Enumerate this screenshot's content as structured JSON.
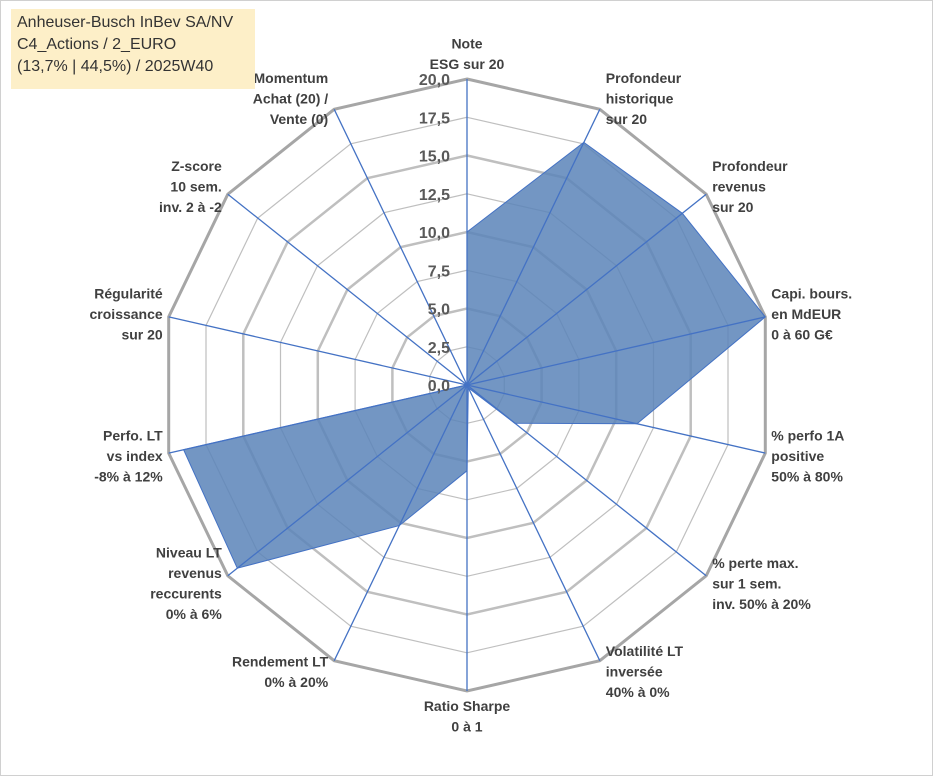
{
  "title": {
    "line1": "Anheuser-Busch InBev SA/NV",
    "line2": "C4_Actions / 2_EURO",
    "line3": "(13,7% | 44,5%) / 2025W40"
  },
  "colors": {
    "fill": "#5b84b8",
    "spoke": "#4472c4",
    "grid": "#bfbfbf",
    "gridOuter": "#a6a6a6",
    "label": "#404040"
  },
  "chart_data": {
    "type": "radar",
    "rmin": 0,
    "rmax": 20,
    "ticks": [
      "0,0",
      "2,5",
      "5,0",
      "7,5",
      "10,0",
      "12,5",
      "15,0",
      "17,5",
      "20,0"
    ],
    "axes": [
      {
        "label": [
          "Note",
          "ESG sur 20"
        ],
        "value": 10.0
      },
      {
        "label": [
          "Profondeur",
          "historique",
          "sur 20"
        ],
        "value": 17.6
      },
      {
        "label": [
          "Profondeur",
          "revenus",
          "sur 20"
        ],
        "value": 18.0
      },
      {
        "label": [
          "Capi. bours.",
          "en MdEUR",
          "0 à 60 G€"
        ],
        "value": 20.0
      },
      {
        "label": [
          "% perfo 1A",
          "positive",
          "50% à 80%"
        ],
        "value": 11.4
      },
      {
        "label": [
          "% perte max.",
          "sur 1 sem.",
          "inv. 50% à 20%"
        ],
        "value": 4.0
      },
      {
        "label": [
          "Volatilité LT",
          "inversée",
          "40% à 0%"
        ],
        "value": 0.2
      },
      {
        "label": [
          "Ratio Sharpe",
          "0 à 1"
        ],
        "value": 5.6
      },
      {
        "label": [
          "Rendement LT",
          "0% à 20%"
        ],
        "value": 10.2
      },
      {
        "label": [
          "Niveau LT",
          "revenus",
          "reccurents",
          "0% à 6%"
        ],
        "value": 19.2
      },
      {
        "label": [
          "Perfo. LT",
          "vs index",
          "-8% à 12%"
        ],
        "value": 19.0
      },
      {
        "label": [
          "Régularité",
          "croissance",
          "sur 20"
        ],
        "value": 0
      },
      {
        "label": [
          "Z-score",
          "10 sem.",
          "inv. 2 à -2"
        ],
        "value": 0
      },
      {
        "label": [
          "Momentum",
          "Achat (20) /",
          "Vente (0)"
        ],
        "value": 0
      }
    ]
  }
}
